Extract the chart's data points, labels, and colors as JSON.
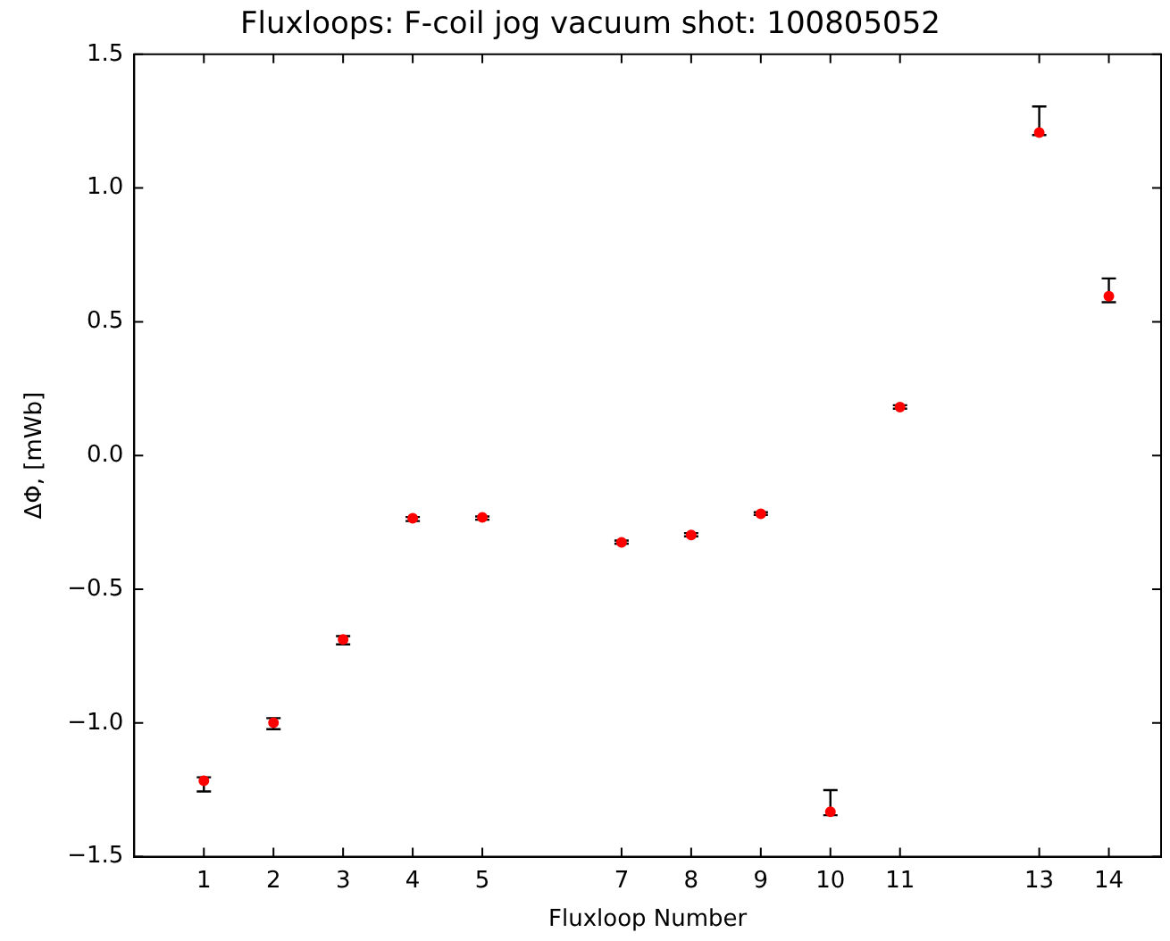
{
  "chart_data": {
    "type": "scatter",
    "title": "Fluxloops: F-coil jog vacuum shot: 100805052",
    "xlabel": "Fluxloop Number",
    "ylabel": "ΔΦ, [mWb]",
    "x": [
      1,
      2,
      3,
      4,
      5,
      7,
      8,
      9,
      10,
      11,
      13,
      14
    ],
    "series": [
      {
        "color": "#ff0000",
        "values": [
          -1.216,
          -0.999,
          -0.688,
          -0.235,
          -0.231,
          -0.325,
          -0.297,
          -0.218,
          -1.332,
          0.181,
          1.207,
          0.596
        ],
        "errors": [
          [
            -1.256,
            -1.203
          ],
          [
            -1.023,
            -0.982
          ],
          [
            -0.706,
            -0.675
          ],
          [
            -0.245,
            -0.23
          ],
          [
            -0.24,
            -0.228
          ],
          [
            -0.33,
            -0.318
          ],
          [
            -0.302,
            -0.29
          ],
          [
            -0.222,
            -0.212
          ],
          [
            -1.345,
            -1.251
          ],
          [
            0.175,
            0.188
          ],
          [
            1.198,
            1.305
          ],
          [
            0.573,
            0.662
          ]
        ]
      }
    ],
    "xlim": [
      0,
      14.75
    ],
    "xticks": [
      1,
      2,
      3,
      4,
      5,
      7,
      8,
      9,
      10,
      11,
      13,
      14
    ],
    "ylim": [
      -1.5,
      1.5
    ],
    "yticks": [
      {
        "value": -1.5,
        "label": "−1.5"
      },
      {
        "value": -1,
        "label": "−1.0"
      },
      {
        "value": -0.5,
        "label": "−0.5"
      },
      {
        "value": 0,
        "label": "0.0"
      },
      {
        "value": 0.5,
        "label": "0.5"
      },
      {
        "value": 1,
        "label": "1.0"
      },
      {
        "value": 1.5,
        "label": "1.5"
      }
    ],
    "grid": false,
    "legend": false,
    "marker": "circle"
  }
}
